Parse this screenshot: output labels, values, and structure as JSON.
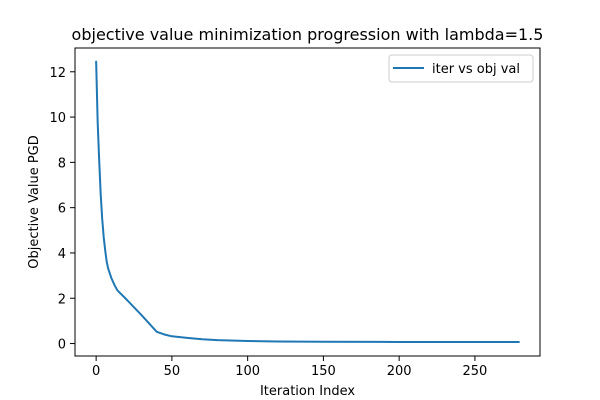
{
  "chart_data": {
    "type": "line",
    "title": "objective value minimization progression with lambda=1.5",
    "xlabel": "Iteration Index",
    "ylabel": "Objective Value PGD",
    "xlim": [
      -13.95,
      292.95
    ],
    "ylim": [
      -0.55,
      13.05
    ],
    "xticks": [
      0,
      50,
      100,
      150,
      200,
      250
    ],
    "yticks": [
      0,
      2,
      4,
      6,
      8,
      10,
      12
    ],
    "grid": false,
    "legend_position": "top-right",
    "series": [
      {
        "name": "iter vs obj val",
        "color": "#1f77b4",
        "x": [
          0,
          1,
          2,
          3,
          4,
          5,
          6,
          7,
          8,
          10,
          12,
          14,
          20,
          30,
          40,
          45,
          50,
          60,
          70,
          80,
          100,
          120,
          150,
          200,
          250,
          279
        ],
        "y": [
          12.45,
          9.8,
          8.1,
          6.6,
          5.5,
          4.7,
          4.1,
          3.6,
          3.3,
          2.9,
          2.6,
          2.35,
          1.95,
          1.25,
          0.52,
          0.4,
          0.32,
          0.25,
          0.19,
          0.15,
          0.11,
          0.09,
          0.08,
          0.07,
          0.07,
          0.07
        ]
      }
    ]
  }
}
